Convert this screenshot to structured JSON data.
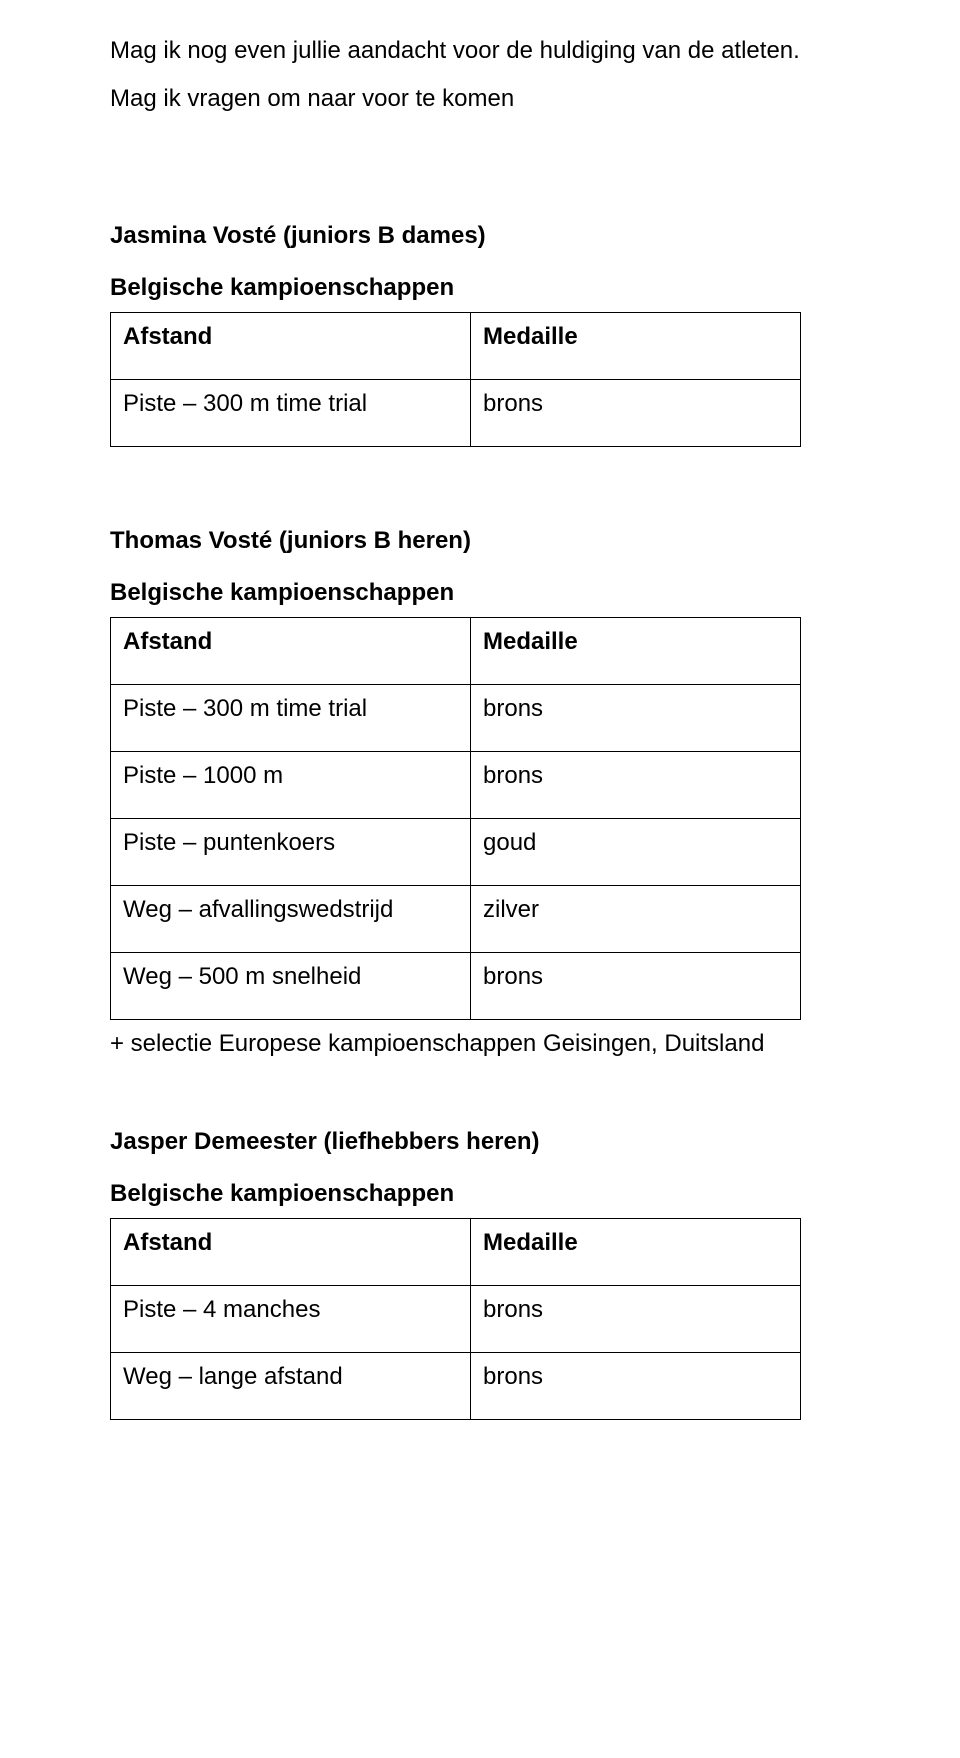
{
  "intro": {
    "line1": "Mag ik nog even jullie aandacht voor de huldiging van de atleten.",
    "line2": "Mag ik vragen om naar voor te komen"
  },
  "table_headers": {
    "afstand": "Afstand",
    "medaille": "Medaille"
  },
  "section_label": "Belgische kampioenschappen",
  "athletes": [
    {
      "name": "Jasmina Vosté (juniors B dames)",
      "rows": [
        {
          "event": "Piste – 300 m time trial",
          "medal": "brons"
        }
      ],
      "note": null
    },
    {
      "name": "Thomas Vosté (juniors B heren)",
      "rows": [
        {
          "event": "Piste – 300 m time trial",
          "medal": "brons"
        },
        {
          "event": "Piste – 1000 m",
          "medal": "brons"
        },
        {
          "event": "Piste – puntenkoers",
          "medal": "goud"
        },
        {
          "event": "Weg – afvallingswedstrijd",
          "medal": "zilver"
        },
        {
          "event": "Weg – 500 m snelheid",
          "medal": "brons"
        }
      ],
      "note": "+ selectie Europese kampioenschappen Geisingen, Duitsland"
    },
    {
      "name": "Jasper Demeester (liefhebbers heren)",
      "rows": [
        {
          "event": "Piste – 4 manches",
          "medal": "brons"
        },
        {
          "event": "Weg – lange afstand",
          "medal": "brons"
        }
      ],
      "note": null
    }
  ]
}
